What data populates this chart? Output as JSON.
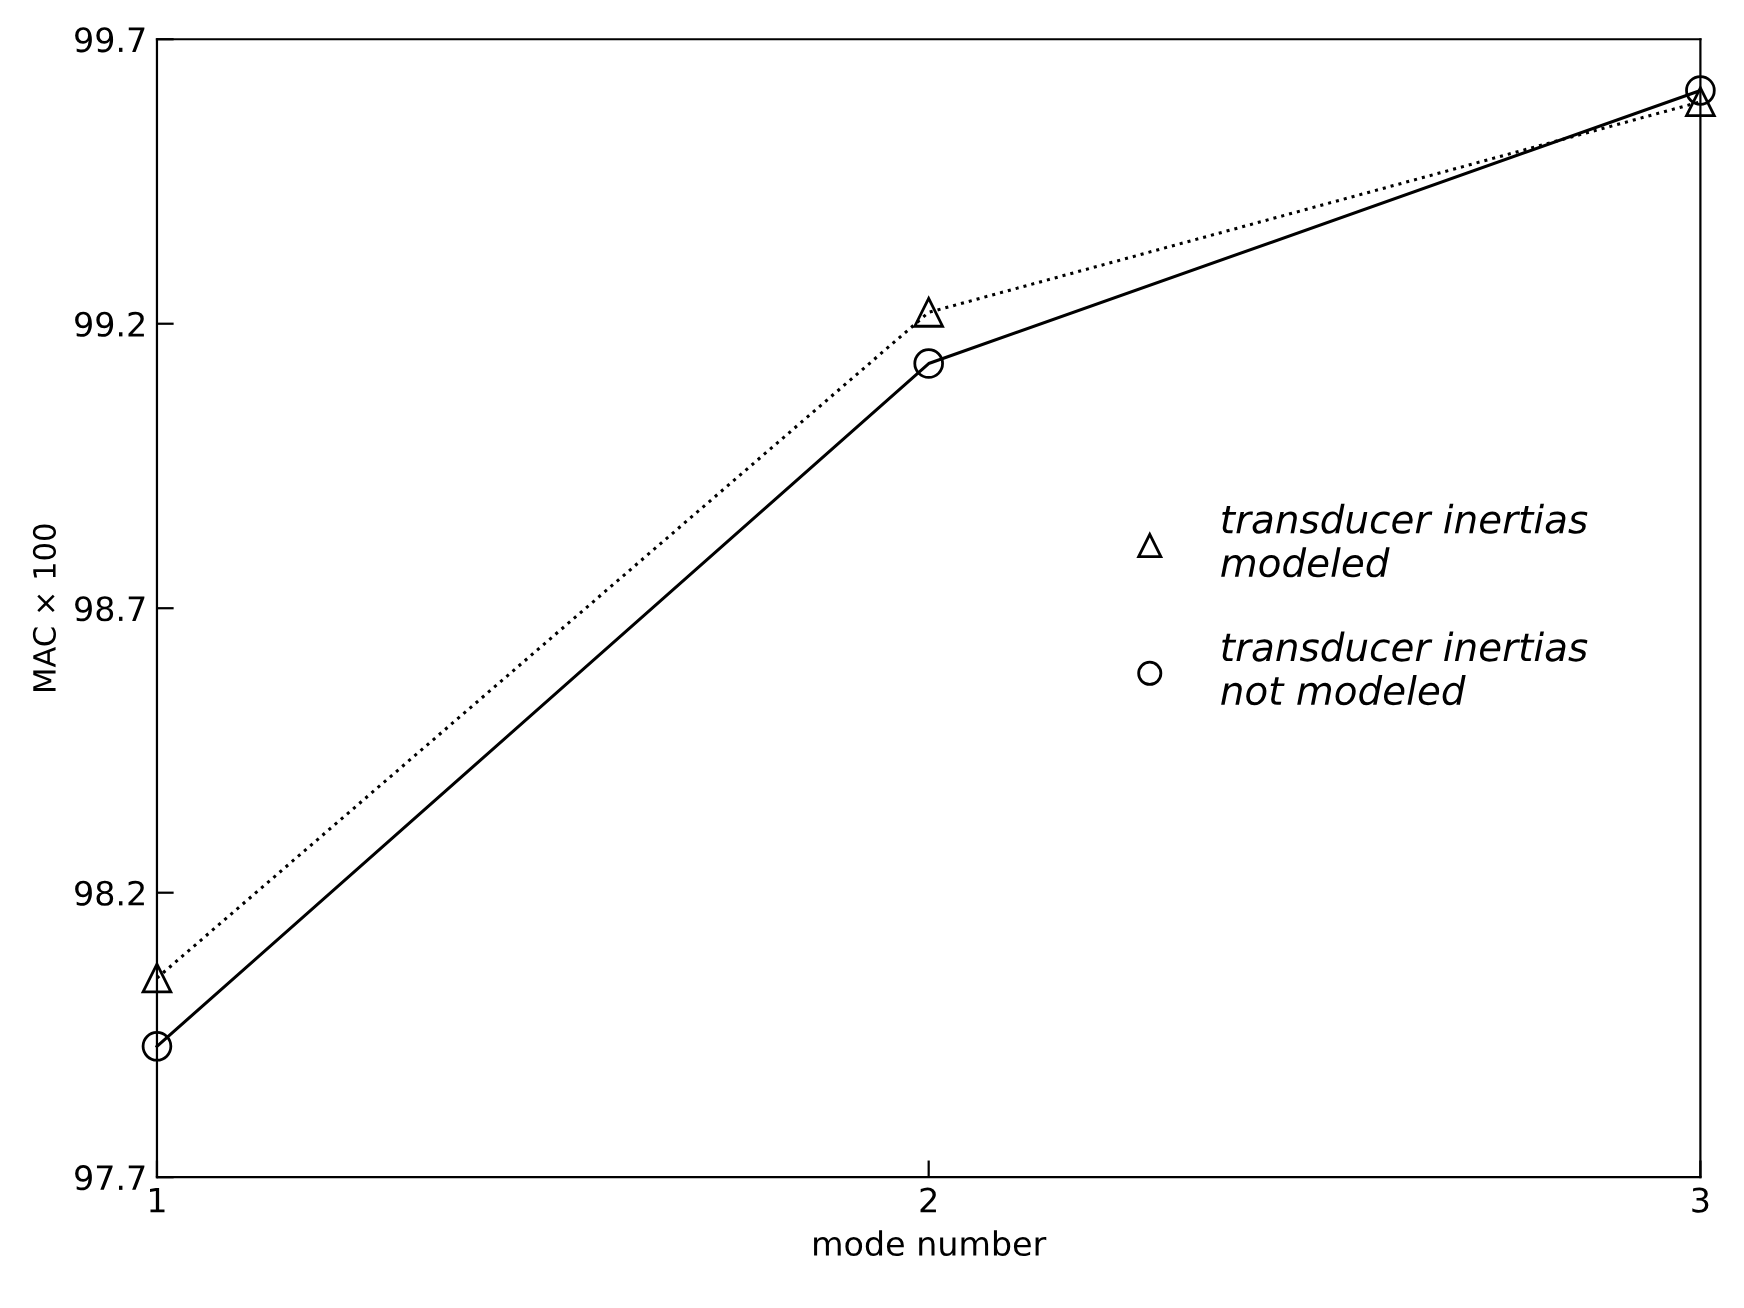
{
  "chart_data": {
    "type": "line",
    "xlabel": "mode number",
    "ylabel": "MAC × 100",
    "x": [
      1,
      2,
      3
    ],
    "series": [
      {
        "name": "transducer inertias\nmodeled",
        "color": "#000000",
        "marker": "triangle",
        "line_style": "dotted",
        "values": [
          98.05,
          99.22,
          99.59
        ]
      },
      {
        "name": "transducer inertias\nnot modeled",
        "color": "#000000",
        "marker": "circle",
        "line_style": "solid",
        "values": [
          97.93,
          99.13,
          99.61
        ]
      }
    ],
    "xlim": [
      1,
      3
    ],
    "xticks": [
      1,
      2,
      3
    ],
    "ylim": [
      97.7,
      99.7
    ],
    "yticks": [
      97.7,
      98.2,
      98.7,
      99.2,
      99.7
    ],
    "grid": false,
    "legend": "right"
  }
}
